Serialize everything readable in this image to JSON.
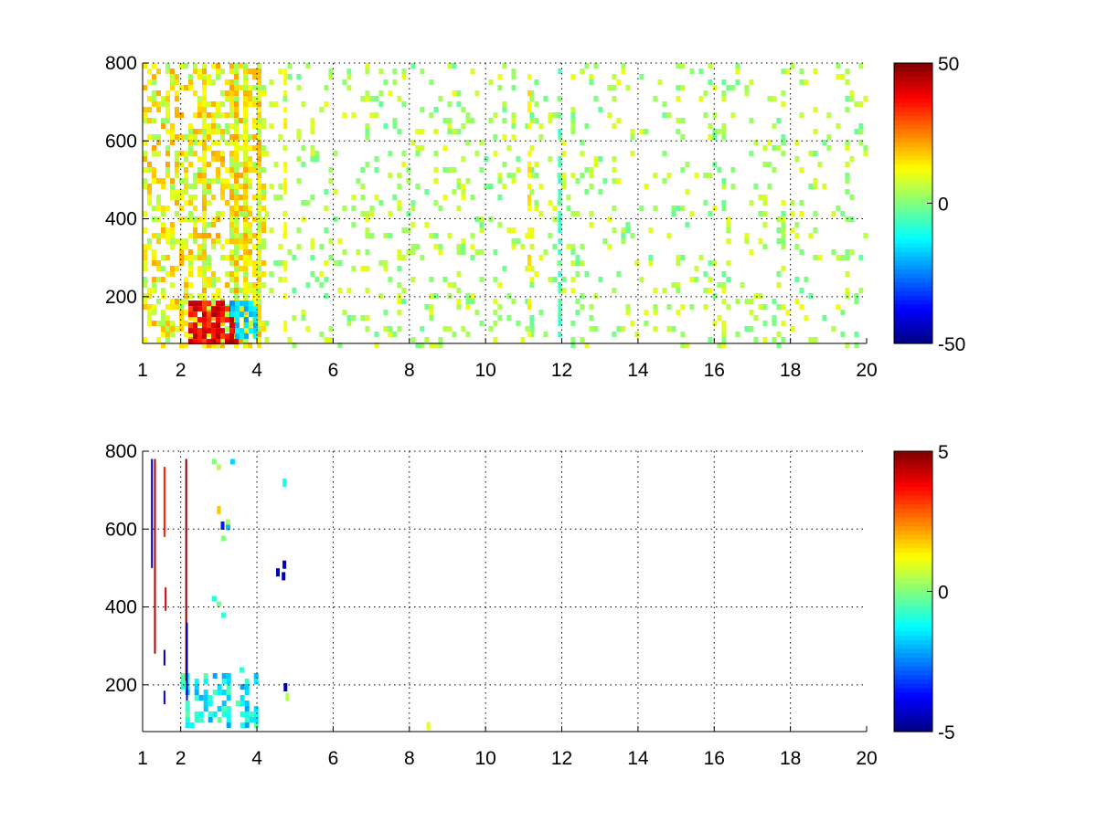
{
  "chart_data": [
    {
      "type": "heatmap",
      "title": "",
      "xlabel": "",
      "ylabel": "",
      "xlim": [
        1,
        20
      ],
      "ylim": [
        80,
        800
      ],
      "x_ticks": [
        "1",
        "2",
        "4",
        "6",
        "8",
        "10",
        "12",
        "14",
        "16",
        "18",
        "20"
      ],
      "y_ticks": [
        "200",
        "400",
        "600",
        "800"
      ],
      "grid": true,
      "colormap": "jet",
      "colorbar": {
        "range": [
          -50,
          50
        ],
        "ticks": [
          "50",
          "0",
          "-50"
        ]
      },
      "features": [
        {
          "x_range": [
            1.0,
            4.2
          ],
          "y_range": [
            80,
            800
          ],
          "density": 0.55,
          "values_mean": 12,
          "values_spread": 10
        },
        {
          "x_range": [
            2.2,
            3.4
          ],
          "y_range": [
            90,
            190
          ],
          "density": 0.95,
          "values_mean": 38,
          "values_spread": 8
        },
        {
          "x_range": [
            3.3,
            4.0
          ],
          "y_range": [
            100,
            190
          ],
          "density": 0.7,
          "values_mean": -18,
          "values_spread": 6
        },
        {
          "x_range": [
            4.2,
            20.0
          ],
          "y_range": [
            80,
            800
          ],
          "density": 0.13,
          "values_mean": 4,
          "values_spread": 7
        }
      ],
      "notable_columns": [
        {
          "x": 11.1,
          "value": 14
        },
        {
          "x": 11.9,
          "value": -6
        },
        {
          "x": 4.7,
          "value": 12
        }
      ]
    },
    {
      "type": "heatmap",
      "title": "",
      "xlabel": "",
      "ylabel": "",
      "xlim": [
        1,
        20
      ],
      "ylim": [
        80,
        800
      ],
      "x_ticks": [
        "1",
        "2",
        "4",
        "6",
        "8",
        "10",
        "12",
        "14",
        "16",
        "18",
        "20"
      ],
      "y_ticks": [
        "200",
        "400",
        "600",
        "800"
      ],
      "grid": true,
      "colormap": "jet",
      "colorbar": {
        "range": [
          -5,
          5
        ],
        "ticks": [
          "5",
          "0",
          "-5"
        ]
      },
      "features": [
        {
          "x_range": [
            2.0,
            4.0
          ],
          "y_range": [
            90,
            230
          ],
          "density": 0.4,
          "values_mean": -1.2,
          "values_spread": 1.0
        },
        {
          "x_range": [
            2.7,
            3.6
          ],
          "y_range": [
            230,
            780
          ],
          "density": 0.04,
          "values_mean": -0.5,
          "values_spread": 1.5
        }
      ],
      "streaks": [
        {
          "x": 1.22,
          "y_range": [
            500,
            780
          ],
          "value": -4.5
        },
        {
          "x": 1.3,
          "y_range": [
            280,
            780
          ],
          "value": 4.5
        },
        {
          "x": 1.55,
          "y_range": [
            580,
            760
          ],
          "value": 3.5
        },
        {
          "x": 1.58,
          "y_range": [
            390,
            450
          ],
          "value": 4.2
        },
        {
          "x": 1.55,
          "y_range": [
            250,
            290
          ],
          "value": -4.6
        },
        {
          "x": 1.55,
          "y_range": [
            150,
            185
          ],
          "value": -4.0
        },
        {
          "x": 2.12,
          "y_range": [
            210,
            780
          ],
          "value": 4.8
        },
        {
          "x": 2.14,
          "y_range": [
            160,
            360
          ],
          "value": -4.5
        }
      ],
      "spots": [
        {
          "x": 4.55,
          "y": 490,
          "value": -4.5
        },
        {
          "x": 4.72,
          "y": 510,
          "value": -4.5
        },
        {
          "x": 4.7,
          "y": 480,
          "value": -4.5
        },
        {
          "x": 4.72,
          "y": 720,
          "value": -1.0
        },
        {
          "x": 4.75,
          "y": 195,
          "value": -4.5
        },
        {
          "x": 4.8,
          "y": 170,
          "value": 0.5
        },
        {
          "x": 8.5,
          "y": 95,
          "value": 1.0
        },
        {
          "x": 3.1,
          "y": 610,
          "value": -3.5
        },
        {
          "x": 3.0,
          "y": 650,
          "value": 1.8
        }
      ]
    }
  ]
}
